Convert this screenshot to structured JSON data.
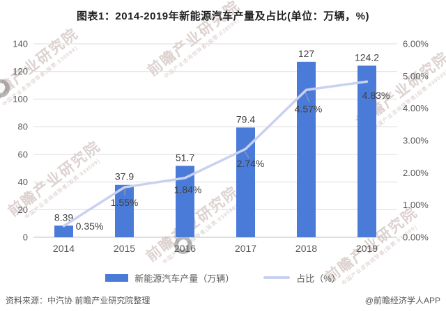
{
  "title": "图表1：2014-2019年新能源汽车产量及占比(单位：万辆，%)",
  "watermark": {
    "text": "前瞻产业研究院",
    "subtext": "中国产业咨询领导者(股票:839599)"
  },
  "legend": {
    "bar_label": "新能源汽车产量（万辆）",
    "line_label": "占比（%）"
  },
  "footer": {
    "source": "资料来源：中汽协 前瞻产业研究院整理",
    "credit": "@前瞻经济学人APP"
  },
  "colors": {
    "bar": "#4B7BD8",
    "line": "#C9D1F0",
    "grid": "#DCDCDC",
    "axis_line": "#C0C0C0",
    "tick_text": "#595959",
    "label_text": "#3F3F3F",
    "leader": "#A0A0A0"
  },
  "chart_data": {
    "type": "bar",
    "subtype": "bar-line-combo",
    "title": "图表1：2014-2019年新能源汽车产量及占比(单位：万辆，%)",
    "categories": [
      "2014",
      "2015",
      "2016",
      "2017",
      "2018",
      "2019"
    ],
    "series": [
      {
        "name": "新能源汽车产量（万辆）",
        "type": "bar",
        "axis": "left",
        "values": [
          8.39,
          37.9,
          51.7,
          79.4,
          127,
          124.2
        ],
        "labels": [
          "8.39",
          "37.9",
          "51.7",
          "79.4",
          "127",
          "124.2"
        ]
      },
      {
        "name": "占比（%）",
        "type": "line",
        "axis": "right",
        "values": [
          0.35,
          1.55,
          1.84,
          2.74,
          4.57,
          4.83
        ],
        "labels": [
          "0.35%",
          "1.55%",
          "1.84%",
          "2.74%",
          "4.57%",
          "4.83%"
        ]
      }
    ],
    "left_axis": {
      "min": 0,
      "max": 140,
      "step": 20,
      "ticks": [
        "0",
        "20",
        "40",
        "60",
        "80",
        "100",
        "120",
        "140"
      ]
    },
    "right_axis": {
      "min": 0,
      "max": 6,
      "step": 1,
      "ticks": [
        "0.00%",
        "1.00%",
        "2.00%",
        "3.00%",
        "4.00%",
        "5.00%",
        "6.00%"
      ]
    },
    "grid": true,
    "legend_position": "bottom"
  }
}
